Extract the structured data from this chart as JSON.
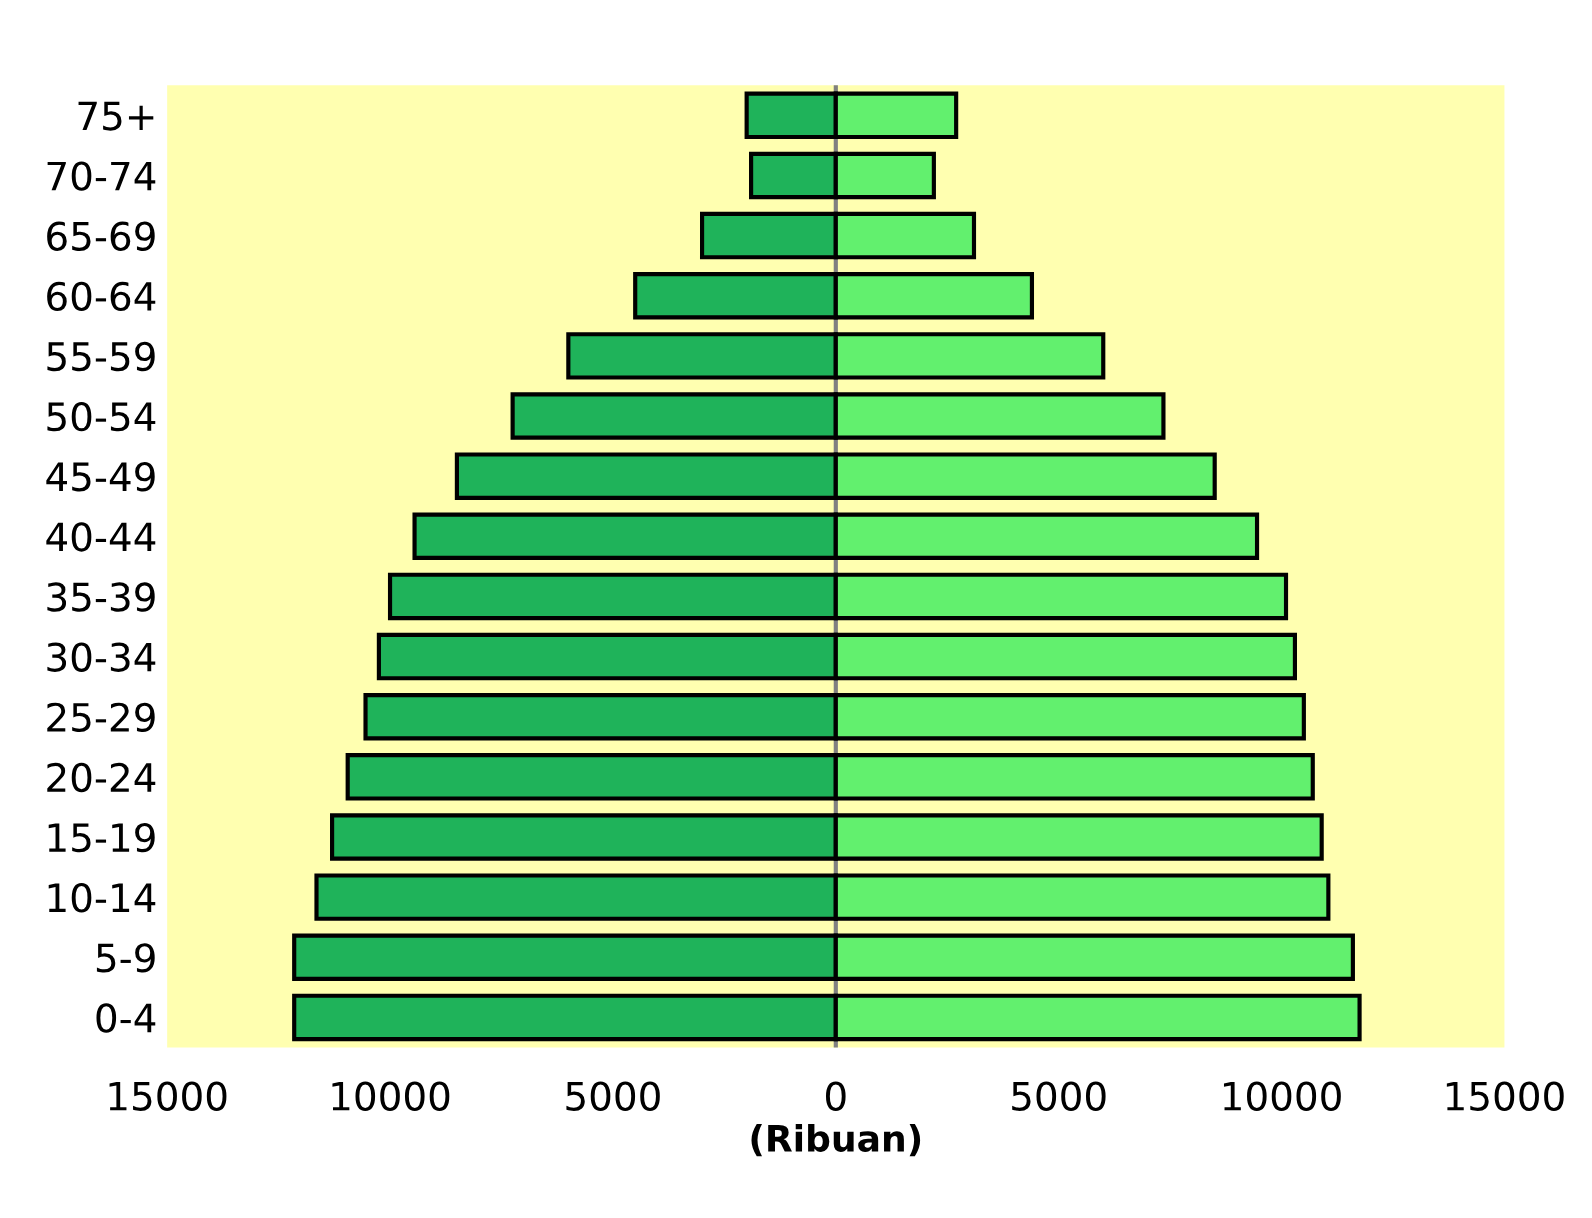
{
  "chart_data": {
    "type": "bar",
    "orientation": "horizontal",
    "stacked": true,
    "xlabel": "(Ribuan)",
    "categories": [
      "75+",
      "70-74",
      "65-69",
      "60-64",
      "55-59",
      "50-54",
      "45-49",
      "40-44",
      "35-39",
      "30-34",
      "25-29",
      "20-24",
      "15-19",
      "10-14",
      "5-9",
      "0-4"
    ],
    "series": [
      {
        "color": "#1fb35a",
        "values": [
          -2000,
          -1900,
          -3000,
          -4500,
          -6000,
          -7250,
          -8500,
          -9450,
          -10000,
          -10250,
          -10550,
          -10950,
          -11300,
          -11650,
          -12150,
          -12150
        ]
      },
      {
        "color": "#62f06e",
        "values": [
          2700,
          2200,
          3100,
          4400,
          6000,
          7350,
          8500,
          9450,
          10100,
          10300,
          10500,
          10700,
          10900,
          11050,
          11600,
          11750
        ]
      }
    ],
    "xlim": [
      -15000,
      15000
    ],
    "xticks": [
      {
        "value": -15000,
        "label": "15000"
      },
      {
        "value": -10000,
        "label": "10000"
      },
      {
        "value": -5000,
        "label": "5000"
      },
      0,
      5000,
      10000,
      15000
    ],
    "ref_lines": [
      {
        "axis": "x",
        "value": 0,
        "color": "#808080"
      }
    ],
    "grid": false,
    "legend": false
  }
}
